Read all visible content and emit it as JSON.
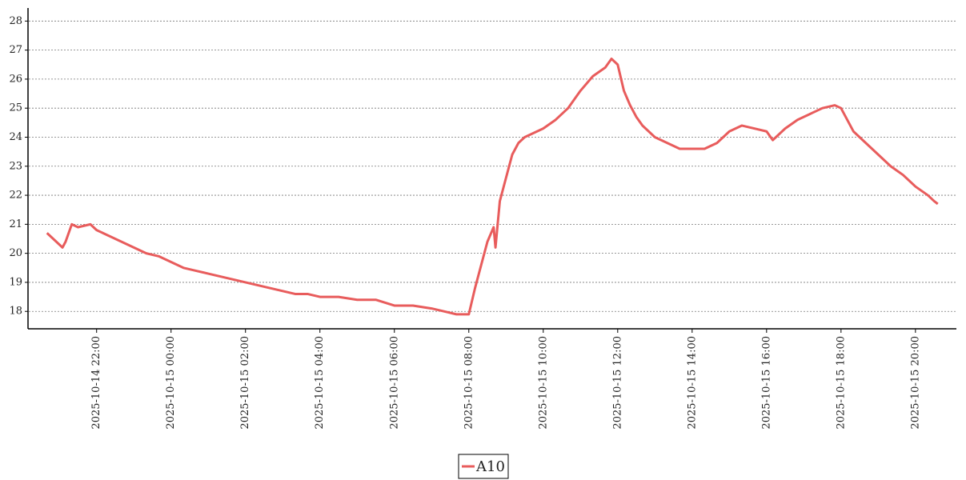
{
  "chart_data": {
    "type": "line",
    "x": [
      "2025-10-14 20:40",
      "2025-10-14 20:50",
      "2025-10-14 21:00",
      "2025-10-14 21:05",
      "2025-10-14 21:10",
      "2025-10-14 21:20",
      "2025-10-14 21:30",
      "2025-10-14 21:50",
      "2025-10-14 22:00",
      "2025-10-14 22:20",
      "2025-10-14 22:40",
      "2025-10-14 23:00",
      "2025-10-14 23:20",
      "2025-10-14 23:40",
      "2025-10-15 00:00",
      "2025-10-15 00:20",
      "2025-10-15 00:40",
      "2025-10-15 01:00",
      "2025-10-15 01:20",
      "2025-10-15 01:40",
      "2025-10-15 02:00",
      "2025-10-15 02:20",
      "2025-10-15 02:40",
      "2025-10-15 03:00",
      "2025-10-15 03:20",
      "2025-10-15 03:40",
      "2025-10-15 04:00",
      "2025-10-15 04:30",
      "2025-10-15 05:00",
      "2025-10-15 05:30",
      "2025-10-15 06:00",
      "2025-10-15 06:30",
      "2025-10-15 07:00",
      "2025-10-15 07:20",
      "2025-10-15 07:40",
      "2025-10-15 08:00",
      "2025-10-15 08:10",
      "2025-10-15 08:20",
      "2025-10-15 08:30",
      "2025-10-15 08:40",
      "2025-10-15 08:43",
      "2025-10-15 08:50",
      "2025-10-15 09:00",
      "2025-10-15 09:10",
      "2025-10-15 09:20",
      "2025-10-15 09:30",
      "2025-10-15 09:50",
      "2025-10-15 10:00",
      "2025-10-15 10:20",
      "2025-10-15 10:40",
      "2025-10-15 11:00",
      "2025-10-15 11:20",
      "2025-10-15 11:40",
      "2025-10-15 11:50",
      "2025-10-15 12:00",
      "2025-10-15 12:10",
      "2025-10-15 12:20",
      "2025-10-15 12:30",
      "2025-10-15 12:40",
      "2025-10-15 13:00",
      "2025-10-15 13:20",
      "2025-10-15 13:40",
      "2025-10-15 14:00",
      "2025-10-15 14:20",
      "2025-10-15 14:40",
      "2025-10-15 15:00",
      "2025-10-15 15:20",
      "2025-10-15 15:40",
      "2025-10-15 16:00",
      "2025-10-15 16:10",
      "2025-10-15 16:30",
      "2025-10-15 16:50",
      "2025-10-15 17:10",
      "2025-10-15 17:30",
      "2025-10-15 17:50",
      "2025-10-15 18:00",
      "2025-10-15 18:10",
      "2025-10-15 18:20",
      "2025-10-15 18:40",
      "2025-10-15 19:00",
      "2025-10-15 19:20",
      "2025-10-15 19:40",
      "2025-10-15 20:00",
      "2025-10-15 20:20",
      "2025-10-15 20:30",
      "2025-10-15 20:36"
    ],
    "series": [
      {
        "name": "A10",
        "color": "#e85c5c",
        "values": [
          20.7,
          20.5,
          20.3,
          20.2,
          20.4,
          21.0,
          20.9,
          21.0,
          20.8,
          20.6,
          20.4,
          20.2,
          20.0,
          19.9,
          19.7,
          19.5,
          19.4,
          19.3,
          19.2,
          19.1,
          19.0,
          18.9,
          18.8,
          18.7,
          18.6,
          18.6,
          18.5,
          18.5,
          18.4,
          18.4,
          18.2,
          18.2,
          18.1,
          18.0,
          17.9,
          17.9,
          18.8,
          19.6,
          20.4,
          20.9,
          20.2,
          21.8,
          22.6,
          23.4,
          23.8,
          24.0,
          24.2,
          24.3,
          24.6,
          25.0,
          25.6,
          26.1,
          26.4,
          26.7,
          26.5,
          25.6,
          25.1,
          24.7,
          24.4,
          24.0,
          23.8,
          23.6,
          23.6,
          23.6,
          23.8,
          24.2,
          24.4,
          24.3,
          24.2,
          23.9,
          24.3,
          24.6,
          24.8,
          25.0,
          25.1,
          25.0,
          24.6,
          24.2,
          23.8,
          23.4,
          23.0,
          22.7,
          22.3,
          22.0,
          21.8,
          21.7
        ]
      }
    ],
    "xlim": [
      "2025-10-14 20:12",
      "2025-10-15 21:06"
    ],
    "xticks": [
      "2025-10-14 22:00",
      "2025-10-15 00:00",
      "2025-10-15 02:00",
      "2025-10-15 04:00",
      "2025-10-15 06:00",
      "2025-10-15 08:00",
      "2025-10-15 10:00",
      "2025-10-15 12:00",
      "2025-10-15 14:00",
      "2025-10-15 16:00",
      "2025-10-15 18:00",
      "2025-10-15 20:00"
    ],
    "ylim": [
      17.4,
      28.45
    ],
    "yticks": [
      18,
      19,
      20,
      21,
      22,
      23,
      24,
      25,
      26,
      27,
      28
    ],
    "grid": true,
    "legend": "bottom"
  }
}
